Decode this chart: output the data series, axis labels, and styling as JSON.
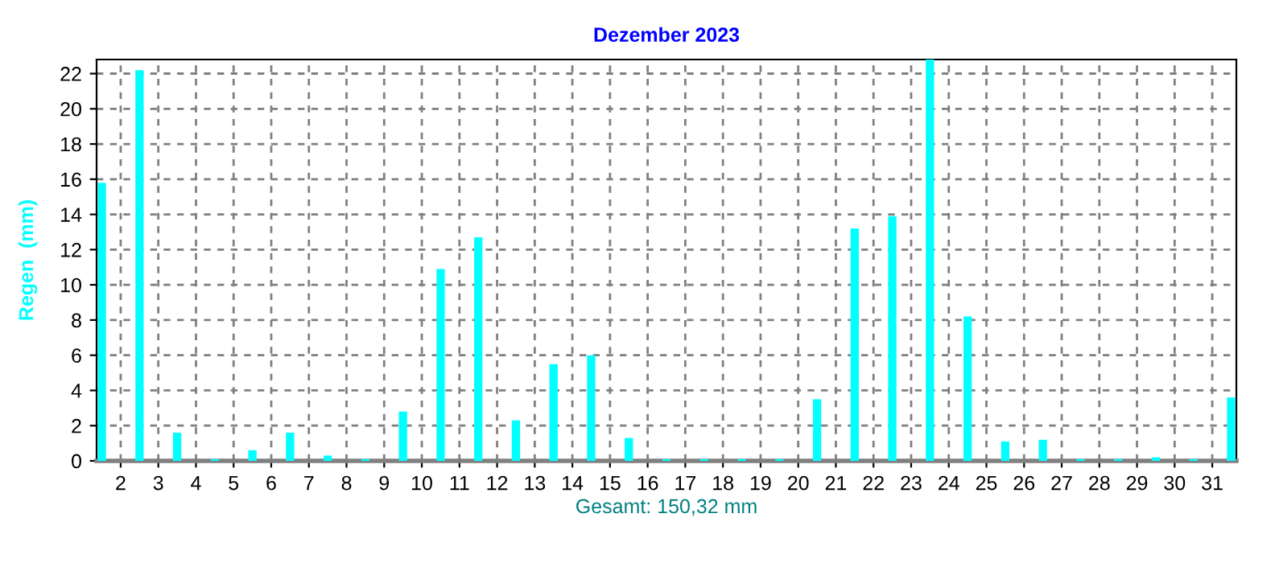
{
  "chart_data": {
    "type": "bar",
    "title": "Dezember 2023",
    "xlabel": "Gesamt: 150,32 mm",
    "ylabel": "Regen  (mm)",
    "x": [
      1.5,
      2.5,
      3.5,
      4.5,
      5.5,
      6.5,
      7.5,
      8.5,
      9.5,
      10.5,
      11.5,
      12.5,
      13.5,
      14.5,
      15.5,
      16.5,
      17.5,
      18.5,
      19.5,
      20.5,
      21.5,
      22.5,
      23.5,
      24.5,
      25.5,
      26.5,
      27.5,
      28.5,
      29.5,
      30.5,
      31.5
    ],
    "values": [
      15.8,
      22.2,
      1.6,
      0.1,
      0.6,
      1.6,
      0.3,
      0.1,
      2.8,
      10.9,
      12.7,
      2.3,
      5.5,
      6.0,
      1.3,
      0.1,
      0.1,
      0.1,
      0.1,
      3.5,
      13.2,
      13.9,
      22.8,
      8.2,
      1.1,
      1.2,
      0.1,
      0.1,
      0.2,
      0.1,
      3.6
    ],
    "color": "#00ffff",
    "xlim": [
      1.36,
      31.64
    ],
    "xticks": [
      2,
      3,
      4,
      5,
      6,
      7,
      8,
      9,
      10,
      11,
      12,
      13,
      14,
      15,
      16,
      17,
      18,
      19,
      20,
      21,
      22,
      23,
      24,
      25,
      26,
      27,
      28,
      29,
      30,
      31
    ],
    "ylim": [
      0,
      22.8
    ],
    "yticks": [
      0,
      2,
      4,
      6,
      8,
      10,
      12,
      14,
      16,
      18,
      20,
      22
    ],
    "grid": true
  }
}
